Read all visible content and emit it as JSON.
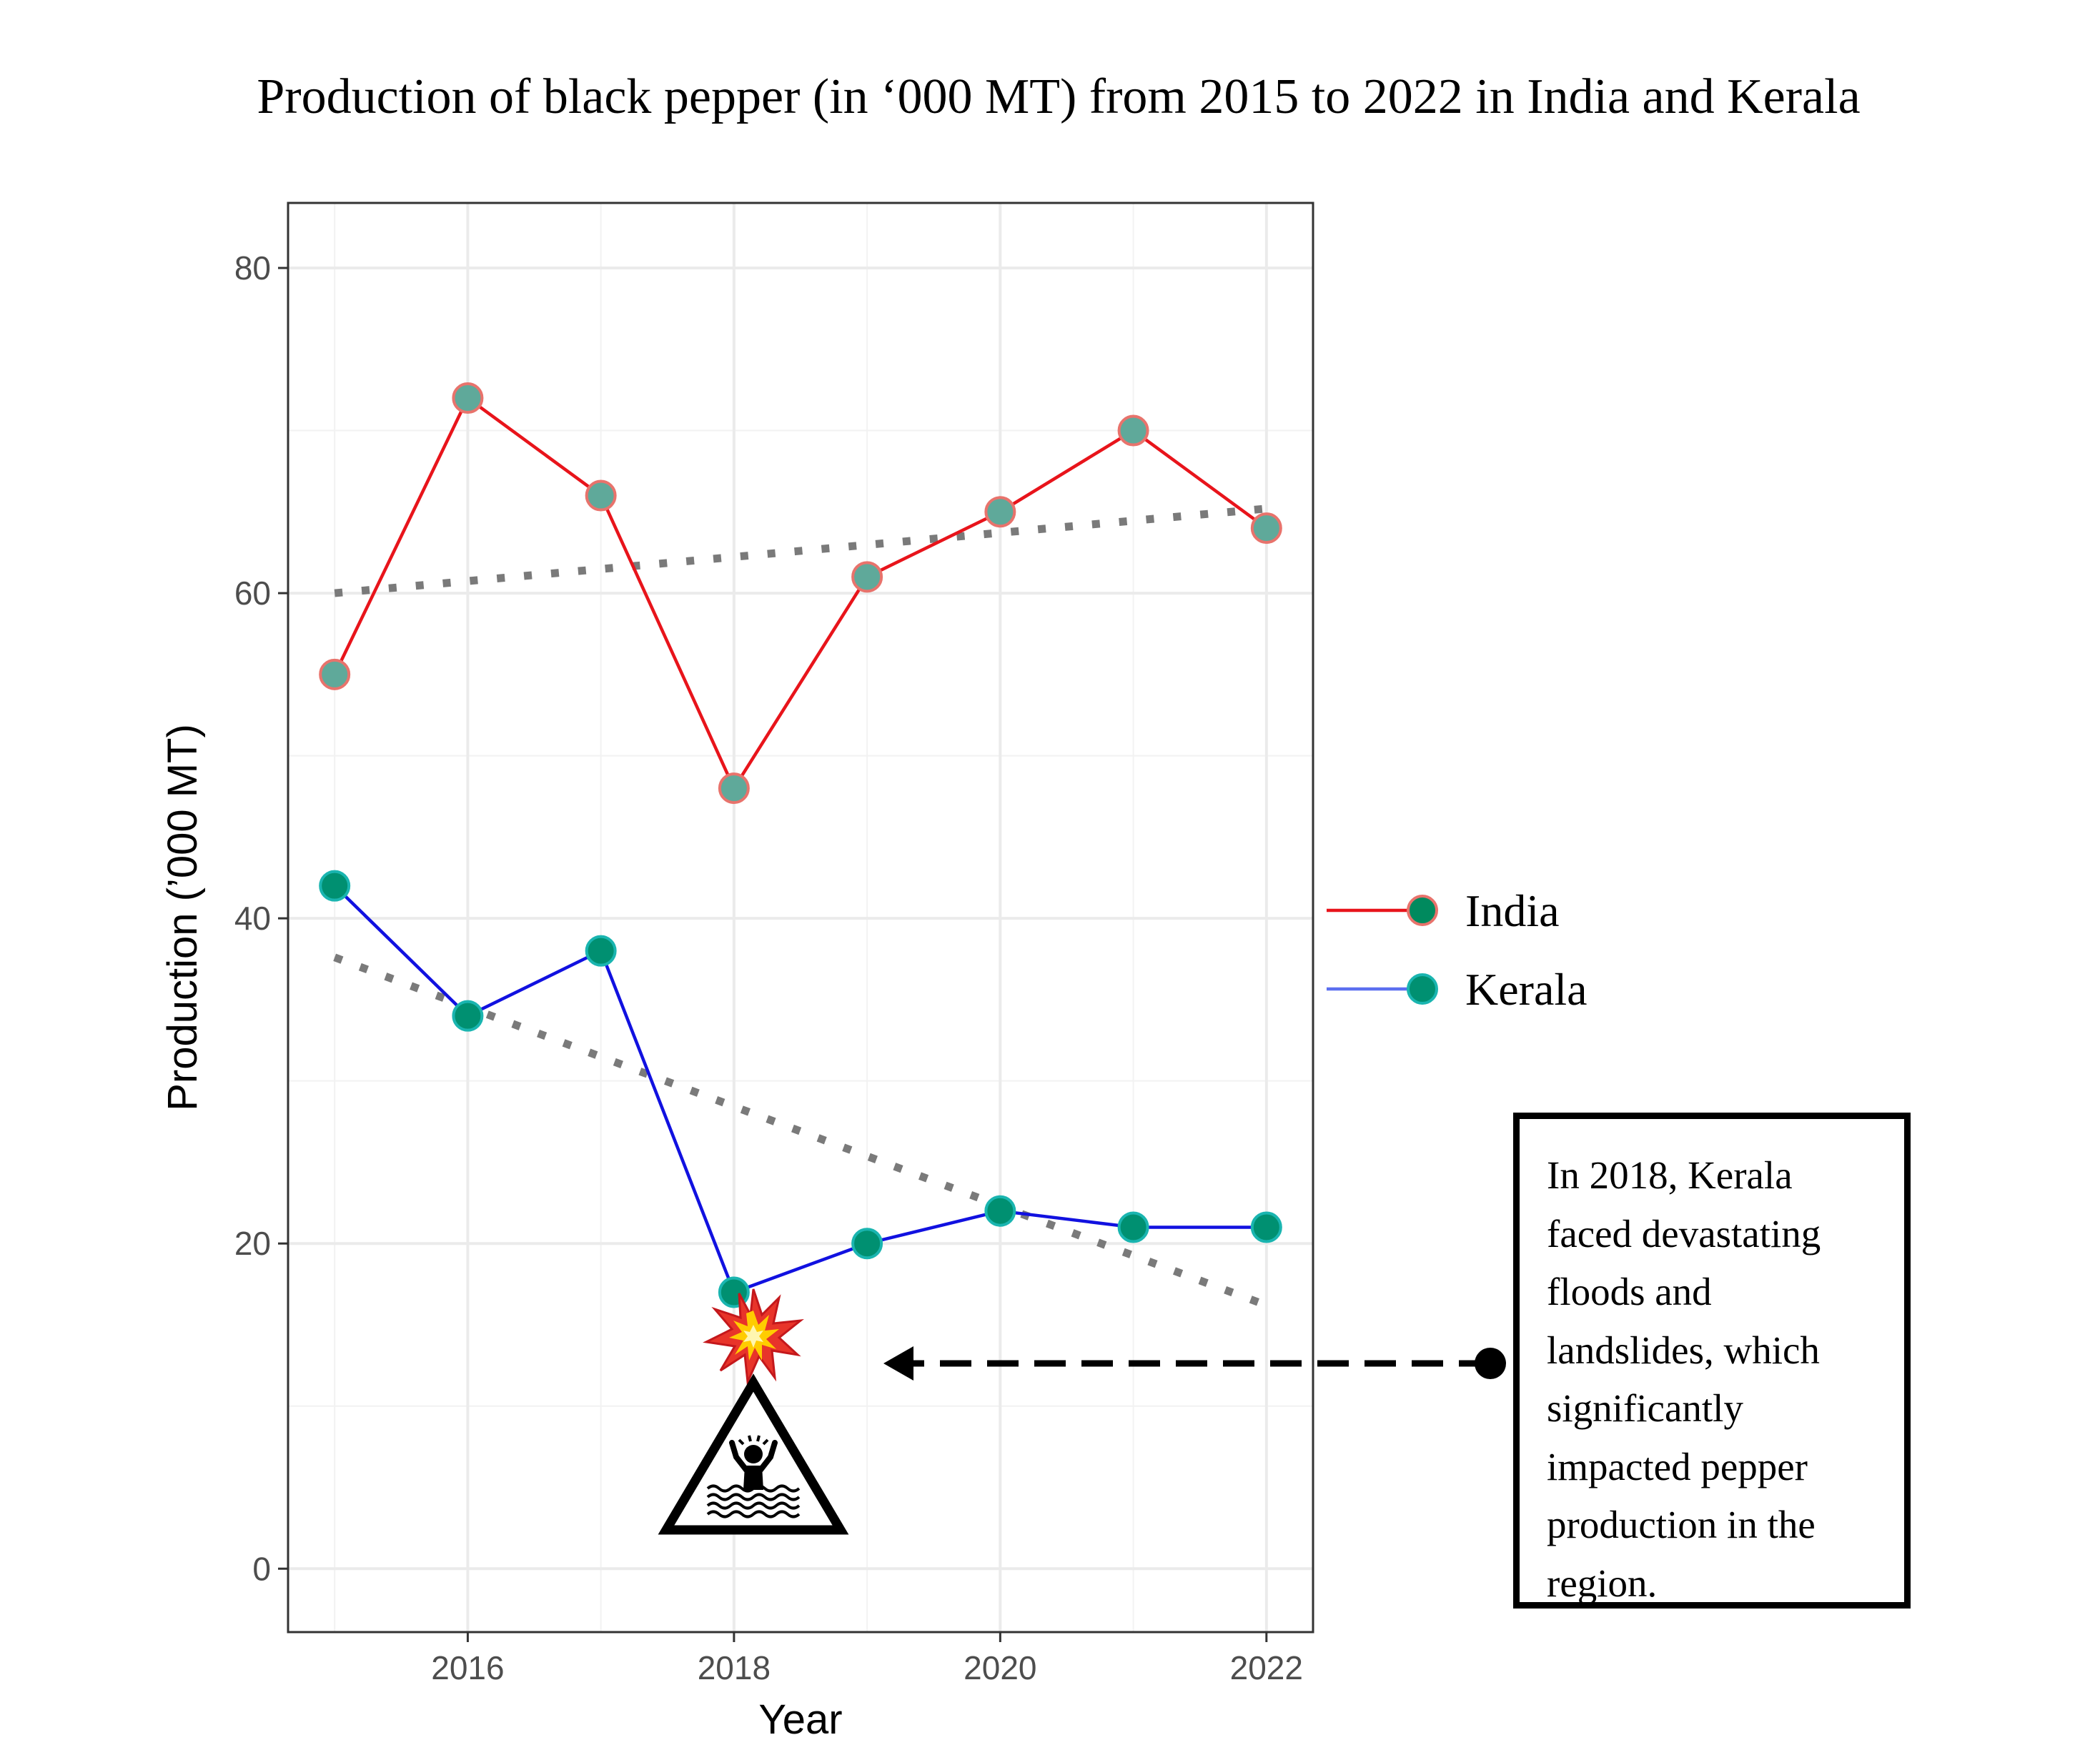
{
  "chart_data": {
    "type": "line",
    "title": "Production of black pepper (in ‘000 MT) from 2015 to 2022 in India and Kerala",
    "xlabel": "Year",
    "ylabel": "Production (’000 MT)",
    "x": [
      2015,
      2016,
      2017,
      2018,
      2019,
      2020,
      2021,
      2022
    ],
    "xlim": [
      2014.65,
      2022.35
    ],
    "ylim": [
      -3.9,
      84.0
    ],
    "xticks": [
      2016,
      2018,
      2020,
      2022
    ],
    "yticks": [
      0,
      20,
      40,
      60,
      80
    ],
    "grid": true,
    "legend_position": "right",
    "series": [
      {
        "name": "India",
        "values": [
          55,
          72,
          66,
          48,
          61,
          65,
          70,
          64
        ],
        "line_color": "#e8141b",
        "point_fill": "#5fa99a",
        "point_stroke": "#e8736c",
        "legend_point_fill": "#008a5e",
        "trend": [
          60.0,
          65.2
        ]
      },
      {
        "name": "Kerala",
        "values": [
          42,
          34,
          38,
          17,
          20,
          22,
          21,
          21
        ],
        "line_color": "#1111e0",
        "legend_line_color": "#5b6ff0",
        "point_fill": "#009071",
        "point_stroke": "#1ab5b0",
        "legend_point_fill": "#009071",
        "trend": [
          37.6,
          16.2
        ]
      }
    ],
    "trend_color": "#7a7a7a",
    "annotation": {
      "text": "In 2018, Kerala faced devastating floods and landslides, which significantly impacted pepper production in the region.",
      "lines": [
        "In 2018, Kerala",
        "faced devastating",
        "floods and",
        "landslides, which",
        "significantly",
        "impacted pepper",
        "production in the",
        "region."
      ],
      "arrow_target": {
        "x": 2019.15,
        "y": 12.3
      },
      "icons": [
        "explosion-icon",
        "flood-warning-icon"
      ]
    }
  }
}
